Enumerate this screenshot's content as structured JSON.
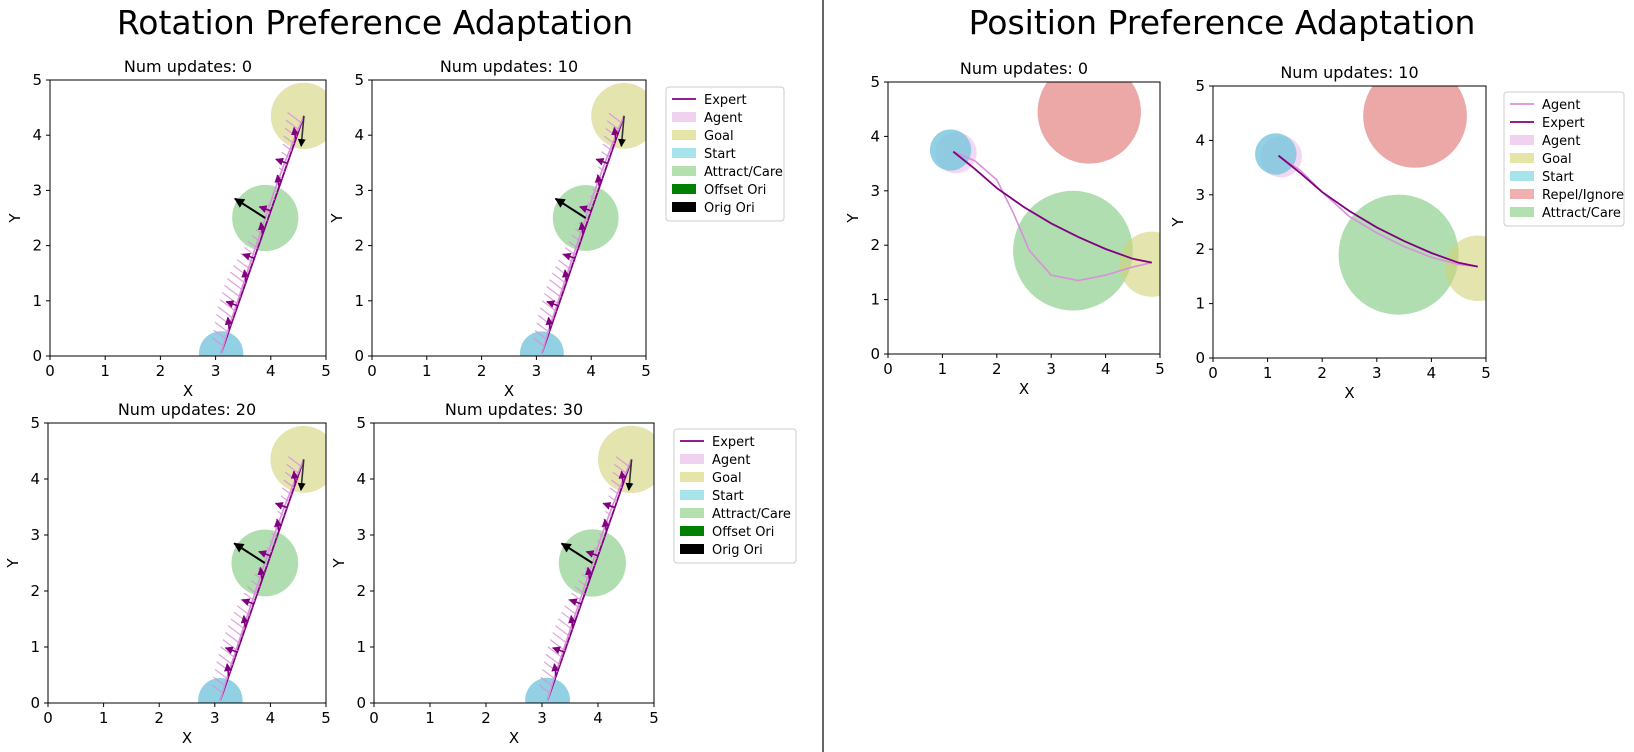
{
  "sections": [
    {
      "title": "Rotation Preference Adaptation"
    },
    {
      "title": "Position Preference Adaptation"
    }
  ],
  "axes_labels": {
    "x": "X",
    "y": "Y"
  },
  "colors": {
    "expert": "#800080",
    "agent": "#DA8FDA",
    "goal": "#D2D27A",
    "start": "#7FC8DE",
    "attract": "#8FD08F",
    "repel": "#E58A8A",
    "offset_ori": "#008000",
    "orig_ori": "#000000"
  },
  "legends": {
    "rotation": [
      {
        "label": "Expert",
        "kind": "line",
        "color": "#800080"
      },
      {
        "label": "Agent",
        "kind": "patch",
        "color": "#F0D2F0"
      },
      {
        "label": "Goal",
        "kind": "patch",
        "color": "#E5E5A8"
      },
      {
        "label": "Start",
        "kind": "patch",
        "color": "#A6E3EA"
      },
      {
        "label": "Attract/Care",
        "kind": "patch",
        "color": "#B4E0B0"
      },
      {
        "label": "Offset Ori",
        "kind": "patch",
        "color": "#008000"
      },
      {
        "label": "Orig Ori",
        "kind": "patch",
        "color": "#000000"
      }
    ],
    "position": [
      {
        "label": "Agent",
        "kind": "line",
        "color": "#DA8FDA"
      },
      {
        "label": "Expert",
        "kind": "line",
        "color": "#800080"
      },
      {
        "label": "Agent",
        "kind": "patch",
        "color": "#F0D2F0"
      },
      {
        "label": "Goal",
        "kind": "patch",
        "color": "#E5E5A8"
      },
      {
        "label": "Start",
        "kind": "patch",
        "color": "#A6E3EA"
      },
      {
        "label": "Repel/Ignore",
        "kind": "patch",
        "color": "#F0B0B0"
      },
      {
        "label": "Attract/Care",
        "kind": "patch",
        "color": "#B4E0B0"
      }
    ]
  },
  "chart_data": [
    {
      "type": "line",
      "title": "Num updates: 0",
      "section": "Rotation Preference Adaptation",
      "xlabel": "X",
      "ylabel": "Y",
      "xlim": [
        0,
        5
      ],
      "ylim": [
        0,
        5
      ],
      "xticks": [
        0,
        1,
        2,
        3,
        4,
        5
      ],
      "yticks": [
        0,
        1,
        2,
        3,
        4,
        5
      ],
      "circles": [
        {
          "name": "Goal",
          "cx": 4.6,
          "cy": 4.35,
          "r": 0.6
        },
        {
          "name": "Attract/Care",
          "cx": 3.9,
          "cy": 2.5,
          "r": 0.6
        },
        {
          "name": "Start",
          "cx": 3.1,
          "cy": 0.05,
          "r": 0.4
        }
      ],
      "series": [
        {
          "name": "Expert",
          "x": [
            3.1,
            4.6
          ],
          "y": [
            0.05,
            4.35
          ]
        },
        {
          "name": "Agent",
          "x": [
            3.1,
            3.25,
            3.45,
            3.65,
            3.85,
            4.05,
            4.25,
            4.45,
            4.6
          ],
          "y": [
            0.05,
            0.55,
            1.15,
            1.75,
            2.35,
            2.95,
            3.5,
            4.0,
            4.35
          ]
        }
      ],
      "orientations": [
        {
          "name": "Orig Ori",
          "x": 3.9,
          "y": 2.5,
          "dx": -0.55,
          "dy": 0.35
        }
      ]
    },
    {
      "type": "line",
      "title": "Num updates: 10",
      "section": "Rotation Preference Adaptation",
      "xlabel": "X",
      "ylabel": "Y",
      "xlim": [
        0,
        5
      ],
      "ylim": [
        0,
        5
      ],
      "xticks": [
        0,
        1,
        2,
        3,
        4,
        5
      ],
      "yticks": [
        0,
        1,
        2,
        3,
        4,
        5
      ],
      "circles": [
        {
          "name": "Goal",
          "cx": 4.6,
          "cy": 4.35,
          "r": 0.6
        },
        {
          "name": "Attract/Care",
          "cx": 3.9,
          "cy": 2.5,
          "r": 0.6
        },
        {
          "name": "Start",
          "cx": 3.1,
          "cy": 0.05,
          "r": 0.4
        }
      ],
      "series": [
        {
          "name": "Expert",
          "x": [
            3.1,
            4.6
          ],
          "y": [
            0.05,
            4.35
          ]
        },
        {
          "name": "Agent",
          "x": [
            3.1,
            3.25,
            3.45,
            3.65,
            3.85,
            4.05,
            4.25,
            4.45,
            4.6
          ],
          "y": [
            0.05,
            0.55,
            1.15,
            1.75,
            2.35,
            2.95,
            3.5,
            4.0,
            4.35
          ]
        }
      ],
      "orientations": [
        {
          "name": "Orig Ori",
          "x": 3.9,
          "y": 2.5,
          "dx": -0.55,
          "dy": 0.35
        }
      ]
    },
    {
      "type": "line",
      "title": "Num updates: 20",
      "section": "Rotation Preference Adaptation",
      "xlabel": "X",
      "ylabel": "Y",
      "xlim": [
        0,
        5
      ],
      "ylim": [
        0,
        5
      ],
      "xticks": [
        0,
        1,
        2,
        3,
        4,
        5
      ],
      "yticks": [
        0,
        1,
        2,
        3,
        4,
        5
      ],
      "circles": [
        {
          "name": "Goal",
          "cx": 4.6,
          "cy": 4.35,
          "r": 0.6
        },
        {
          "name": "Attract/Care",
          "cx": 3.9,
          "cy": 2.5,
          "r": 0.6
        },
        {
          "name": "Start",
          "cx": 3.1,
          "cy": 0.05,
          "r": 0.4
        }
      ],
      "series": [
        {
          "name": "Expert",
          "x": [
            3.1,
            4.6
          ],
          "y": [
            0.05,
            4.35
          ]
        },
        {
          "name": "Agent",
          "x": [
            3.1,
            3.25,
            3.45,
            3.65,
            3.85,
            4.05,
            4.25,
            4.45,
            4.6
          ],
          "y": [
            0.05,
            0.55,
            1.15,
            1.75,
            2.35,
            2.95,
            3.5,
            4.0,
            4.35
          ]
        }
      ],
      "orientations": [
        {
          "name": "Orig Ori",
          "x": 3.9,
          "y": 2.5,
          "dx": -0.55,
          "dy": 0.35
        }
      ]
    },
    {
      "type": "line",
      "title": "Num updates: 30",
      "section": "Rotation Preference Adaptation",
      "xlabel": "X",
      "ylabel": "Y",
      "xlim": [
        0,
        5
      ],
      "ylim": [
        0,
        5
      ],
      "xticks": [
        0,
        1,
        2,
        3,
        4,
        5
      ],
      "yticks": [
        0,
        1,
        2,
        3,
        4,
        5
      ],
      "circles": [
        {
          "name": "Goal",
          "cx": 4.6,
          "cy": 4.35,
          "r": 0.6
        },
        {
          "name": "Attract/Care",
          "cx": 3.9,
          "cy": 2.5,
          "r": 0.6
        },
        {
          "name": "Start",
          "cx": 3.1,
          "cy": 0.05,
          "r": 0.4
        }
      ],
      "series": [
        {
          "name": "Expert",
          "x": [
            3.1,
            4.6
          ],
          "y": [
            0.05,
            4.35
          ]
        },
        {
          "name": "Agent",
          "x": [
            3.1,
            3.25,
            3.45,
            3.65,
            3.85,
            4.05,
            4.25,
            4.45,
            4.6
          ],
          "y": [
            0.05,
            0.55,
            1.15,
            1.75,
            2.35,
            2.95,
            3.5,
            4.0,
            4.35
          ]
        }
      ],
      "orientations": [
        {
          "name": "Orig Ori",
          "x": 3.9,
          "y": 2.5,
          "dx": -0.55,
          "dy": 0.35
        }
      ]
    },
    {
      "type": "line",
      "title": "Num updates: 0",
      "section": "Position Preference Adaptation",
      "xlabel": "X",
      "ylabel": "Y",
      "xlim": [
        0,
        5
      ],
      "ylim": [
        0,
        5
      ],
      "xticks": [
        0,
        1,
        2,
        3,
        4,
        5
      ],
      "yticks": [
        0,
        1,
        2,
        3,
        4,
        5
      ],
      "circles": [
        {
          "name": "Repel/Ignore",
          "cx": 3.7,
          "cy": 4.45,
          "r": 0.95
        },
        {
          "name": "Attract/Care",
          "cx": 3.4,
          "cy": 1.9,
          "r": 1.1
        },
        {
          "name": "Goal",
          "cx": 4.85,
          "cy": 1.65,
          "r": 0.6
        },
        {
          "name": "Agent",
          "cx": 1.25,
          "cy": 3.7,
          "r": 0.38
        },
        {
          "name": "Start",
          "cx": 1.15,
          "cy": 3.75,
          "r": 0.38
        }
      ],
      "series": [
        {
          "name": "Agent",
          "x": [
            1.2,
            1.6,
            2.0,
            2.3,
            2.6,
            3.0,
            3.5,
            4.0,
            4.5,
            4.85
          ],
          "y": [
            3.72,
            3.55,
            3.2,
            2.6,
            1.9,
            1.45,
            1.35,
            1.45,
            1.6,
            1.68
          ]
        },
        {
          "name": "Expert",
          "x": [
            1.2,
            1.6,
            2.0,
            2.5,
            3.0,
            3.5,
            4.0,
            4.5,
            4.85
          ],
          "y": [
            3.72,
            3.4,
            3.05,
            2.7,
            2.4,
            2.15,
            1.93,
            1.75,
            1.68
          ]
        }
      ]
    },
    {
      "type": "line",
      "title": "Num updates: 10",
      "section": "Position Preference Adaptation",
      "xlabel": "X",
      "ylabel": "Y",
      "xlim": [
        0,
        5
      ],
      "ylim": [
        0,
        5
      ],
      "xticks": [
        0,
        1,
        2,
        3,
        4,
        5
      ],
      "yticks": [
        0,
        1,
        2,
        3,
        4,
        5
      ],
      "circles": [
        {
          "name": "Repel/Ignore",
          "cx": 3.7,
          "cy": 4.45,
          "r": 0.95
        },
        {
          "name": "Attract/Care",
          "cx": 3.4,
          "cy": 1.9,
          "r": 1.1
        },
        {
          "name": "Goal",
          "cx": 4.85,
          "cy": 1.65,
          "r": 0.6
        },
        {
          "name": "Agent",
          "cx": 1.25,
          "cy": 3.7,
          "r": 0.38
        },
        {
          "name": "Start",
          "cx": 1.15,
          "cy": 3.75,
          "r": 0.38
        }
      ],
      "series": [
        {
          "name": "Agent",
          "x": [
            1.2,
            1.6,
            2.0,
            2.5,
            3.0,
            3.5,
            4.0,
            4.5,
            4.85
          ],
          "y": [
            3.72,
            3.45,
            3.05,
            2.6,
            2.3,
            2.05,
            1.85,
            1.72,
            1.68
          ]
        },
        {
          "name": "Expert",
          "x": [
            1.2,
            1.6,
            2.0,
            2.5,
            3.0,
            3.5,
            4.0,
            4.5,
            4.85
          ],
          "y": [
            3.72,
            3.4,
            3.05,
            2.7,
            2.4,
            2.15,
            1.93,
            1.75,
            1.68
          ]
        }
      ]
    }
  ]
}
